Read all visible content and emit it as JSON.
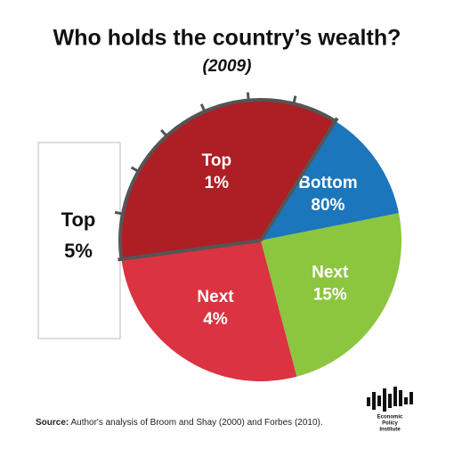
{
  "chart_data": {
    "type": "pie",
    "title": "Who holds the country’s wealth?",
    "subtitle": "(2009)",
    "categories": [
      [
        "Top",
        "1%"
      ],
      [
        "Bottom",
        "80%"
      ],
      [
        "Next",
        "15%"
      ],
      [
        "Next",
        "4%"
      ]
    ],
    "values": [
      36,
      13,
      24,
      27
    ],
    "colors": [
      "#ae1e25",
      "#1c76bc",
      "#8cc63f",
      "#db3341"
    ],
    "group_annotation": [
      "Top",
      "5%"
    ],
    "source_label": "Source:",
    "source": "Author's analysis of Broom and Shay (2000) and Forbes (2010).",
    "logo": [
      "Economic",
      "Policy",
      "Institute"
    ]
  }
}
